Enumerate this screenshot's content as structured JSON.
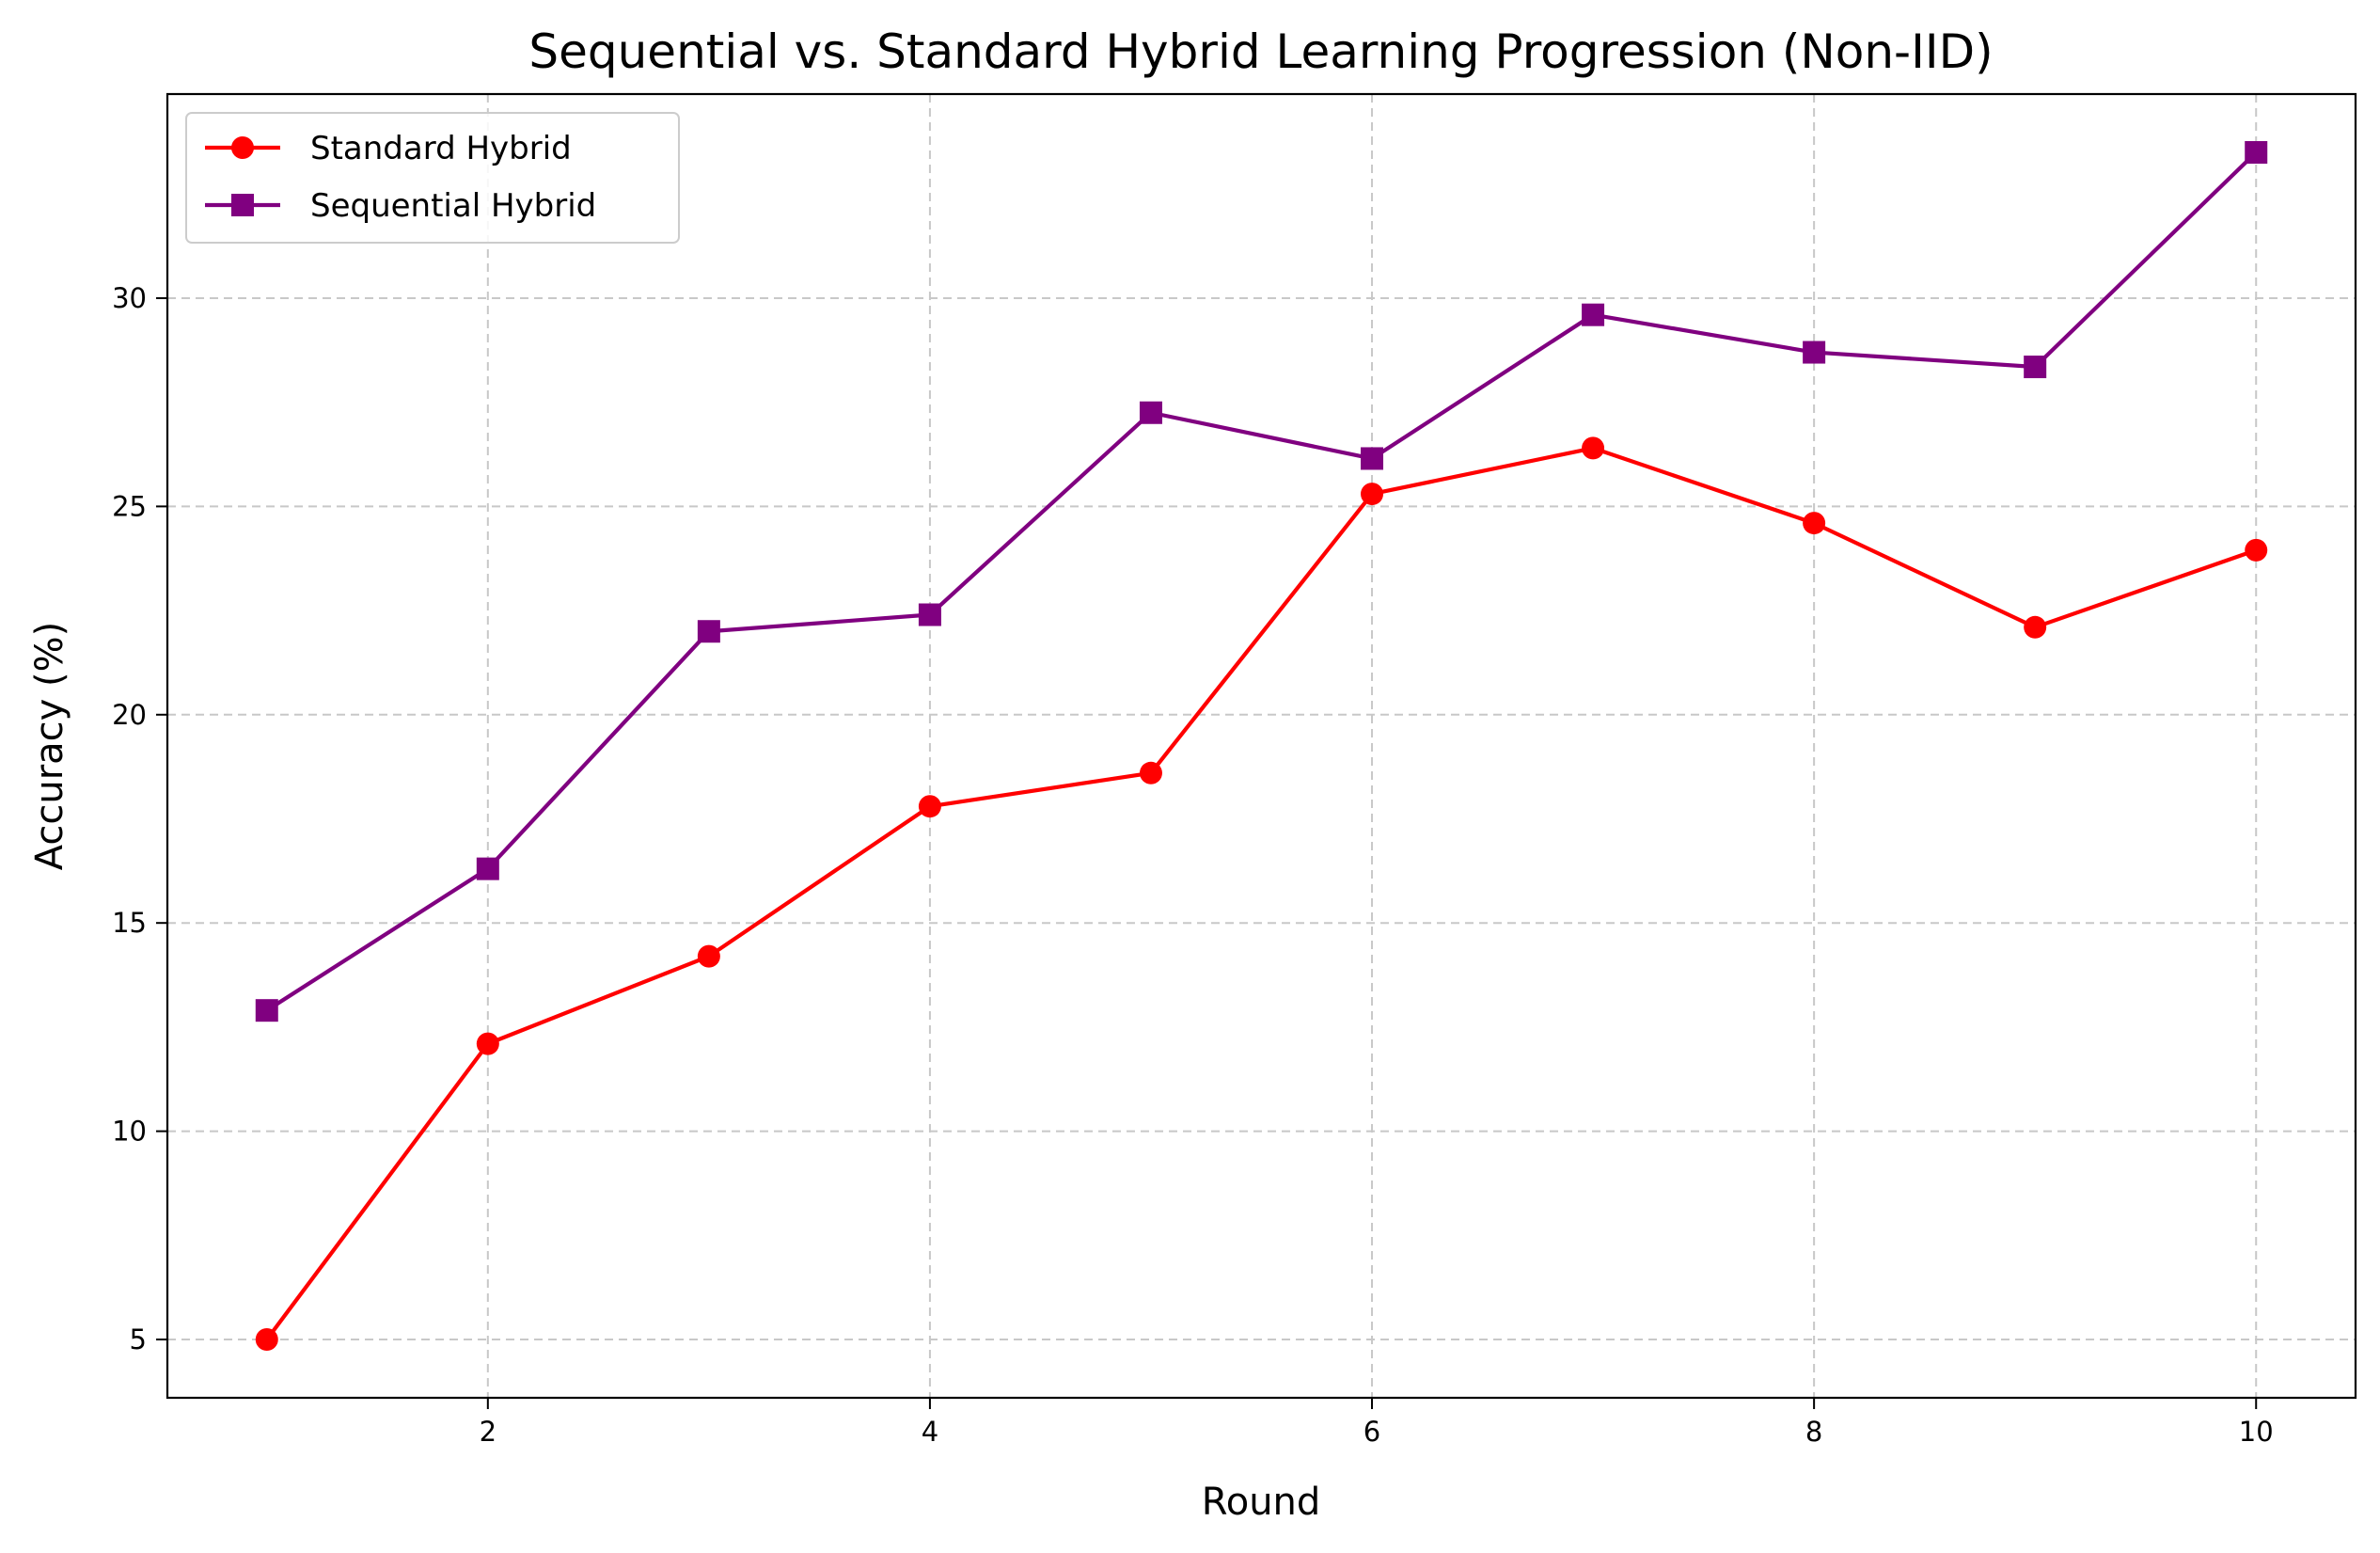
{
  "chart_data": {
    "type": "line",
    "title": "Sequential vs. Standard Hybrid Learning Progression (Non-IID)",
    "xlabel": "Round",
    "ylabel": "Accuracy (%)",
    "x": [
      1,
      2,
      3,
      4,
      5,
      6,
      7,
      8,
      9,
      10
    ],
    "xlim": [
      0.55,
      10.45
    ],
    "ylim": [
      3.6,
      34.9
    ],
    "xticks": [
      2,
      4,
      6,
      8,
      10
    ],
    "yticks": [
      5,
      10,
      15,
      20,
      25,
      30
    ],
    "grid": true,
    "legend_position": "top-left",
    "series": [
      {
        "name": "Standard Hybrid",
        "color": "#ff0000",
        "marker": "circle",
        "values": [
          5.0,
          12.1,
          14.2,
          17.8,
          18.6,
          25.3,
          26.4,
          24.6,
          22.1,
          23.95
        ]
      },
      {
        "name": "Sequential Hybrid",
        "color": "#800080",
        "marker": "square",
        "values": [
          12.9,
          16.3,
          22.0,
          22.4,
          27.25,
          26.15,
          29.6,
          28.7,
          28.35,
          33.5
        ]
      }
    ]
  }
}
